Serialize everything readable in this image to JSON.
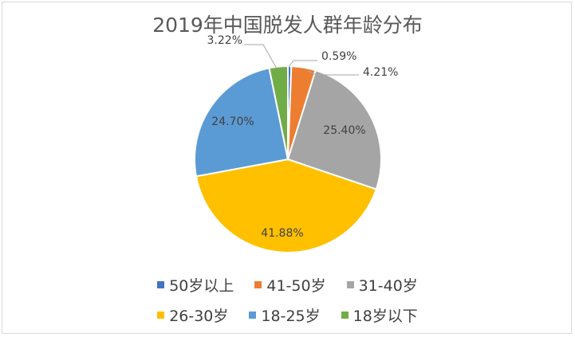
{
  "chart_data": {
    "type": "pie",
    "title": "2019年中国脱发人群年龄分布",
    "categories": [
      "50岁以上",
      "41-50岁",
      "31-40岁",
      "26-30岁",
      "18-25岁",
      "18岁以下"
    ],
    "values": [
      0.59,
      4.21,
      25.4,
      41.88,
      24.7,
      3.22
    ],
    "data_labels": [
      "0.59%",
      "4.21%",
      "25.40%",
      "41.88%",
      "24.70%",
      "3.22%"
    ],
    "colors": [
      "#4472c4",
      "#ed7d31",
      "#a5a5a5",
      "#ffc000",
      "#5b9bd5",
      "#70ad47"
    ],
    "legend_position": "bottom"
  }
}
